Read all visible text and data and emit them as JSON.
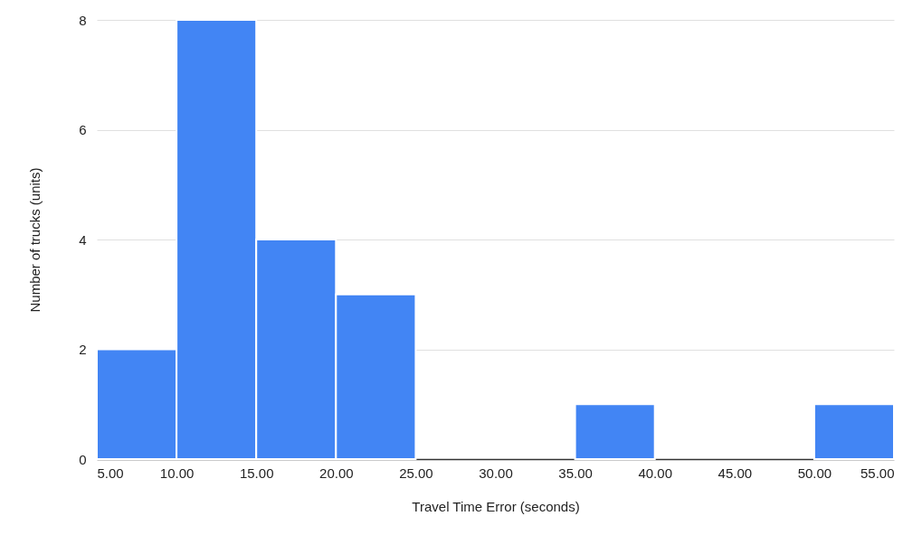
{
  "chart_data": {
    "type": "histogram",
    "xlabel": "Travel Time Error (seconds)",
    "ylabel": "Number of trucks (units)",
    "bins": [
      5,
      10,
      15,
      20,
      25,
      30,
      35,
      40,
      45,
      50,
      55
    ],
    "values": [
      2,
      8,
      4,
      3,
      0,
      0,
      1,
      0,
      0,
      1
    ],
    "color": "#4285f4",
    "xlim": [
      5,
      55
    ],
    "xticks": [
      {
        "value": 5,
        "label": "5.00"
      },
      {
        "value": 10,
        "label": "10.00"
      },
      {
        "value": 15,
        "label": "15.00"
      },
      {
        "value": 20,
        "label": "20.00"
      },
      {
        "value": 25,
        "label": "25.00"
      },
      {
        "value": 30,
        "label": "30.00"
      },
      {
        "value": 35,
        "label": "35.00"
      },
      {
        "value": 40,
        "label": "40.00"
      },
      {
        "value": 45,
        "label": "45.00"
      },
      {
        "value": 50,
        "label": "50.00"
      },
      {
        "value": 55,
        "label": "55.00"
      }
    ],
    "ylim": [
      0,
      8
    ],
    "yticks": [
      0,
      2,
      4,
      6,
      8
    ],
    "grid": "y"
  }
}
